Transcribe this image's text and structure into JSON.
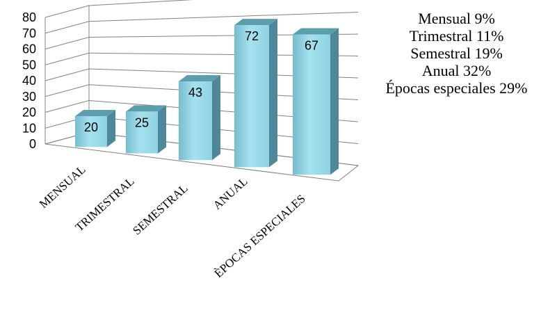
{
  "chart_data": {
    "type": "bar",
    "style": "3d-column",
    "categories": [
      "MENSUAL",
      "TRIMESTRAL",
      "SEMESTRAL",
      "ANUAL",
      "ÈPOCAS ESPECIALES"
    ],
    "values": [
      20,
      25,
      43,
      72,
      67
    ],
    "ylim": [
      0,
      80
    ],
    "yticks": [
      "0",
      "10",
      "20",
      "30",
      "40",
      "50",
      "60",
      "70",
      "80"
    ],
    "grid": true,
    "legend": "none",
    "colors": {
      "bar_front": "#8ed2e3",
      "bar_top": "#5d9eae",
      "bar_side": "#4e8797",
      "grid": "#808080"
    }
  },
  "annotations": [
    "Mensual 9%",
    "Trimestral 11%",
    "Semestral 19%",
    "Anual 32%",
    "Épocas especiales  29%"
  ]
}
